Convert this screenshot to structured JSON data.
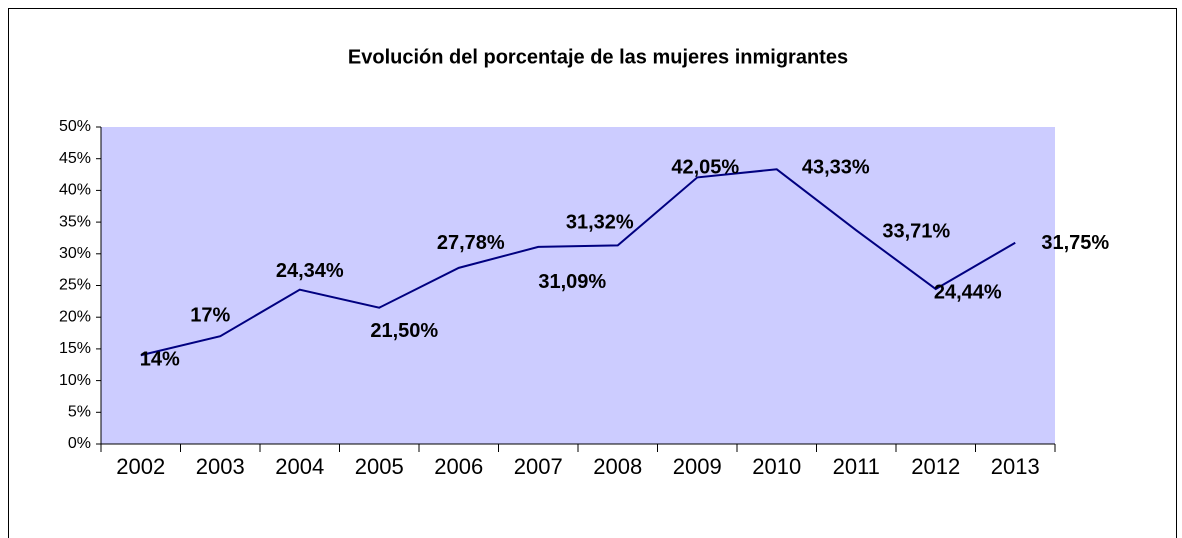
{
  "chart_data": {
    "type": "line",
    "title": "Evolución del porcentaje de las mujeres inmigrantes",
    "categories": [
      "2002",
      "2003",
      "2004",
      "2005",
      "2006",
      "2007",
      "2008",
      "2009",
      "2010",
      "2011",
      "2012",
      "2013"
    ],
    "values": [
      14,
      17,
      24.34,
      21.5,
      27.78,
      31.09,
      31.32,
      42.05,
      43.33,
      33.71,
      24.44,
      31.75
    ],
    "value_labels": [
      "14%",
      "17%",
      "24,34%",
      "21,50%",
      "27,78%",
      "31,09%",
      "31,32%",
      "42,05%",
      "43,33%",
      "33,71%",
      "24,44%",
      "31,75%"
    ],
    "color": "#000080",
    "plot_background": "#ccccff",
    "ylim": [
      0,
      50
    ],
    "yticks": [
      {
        "value": 0,
        "label": "0%"
      },
      {
        "value": 5,
        "label": "5%"
      },
      {
        "value": 10,
        "label": "10%"
      },
      {
        "value": 15,
        "label": "15%"
      },
      {
        "value": 20,
        "label": "20%"
      },
      {
        "value": 25,
        "label": "25%"
      },
      {
        "value": 30,
        "label": "30%"
      },
      {
        "value": 35,
        "label": "35%"
      },
      {
        "value": 40,
        "label": "40%"
      },
      {
        "value": 45,
        "label": "45%"
      },
      {
        "value": 50,
        "label": "50%"
      }
    ]
  }
}
